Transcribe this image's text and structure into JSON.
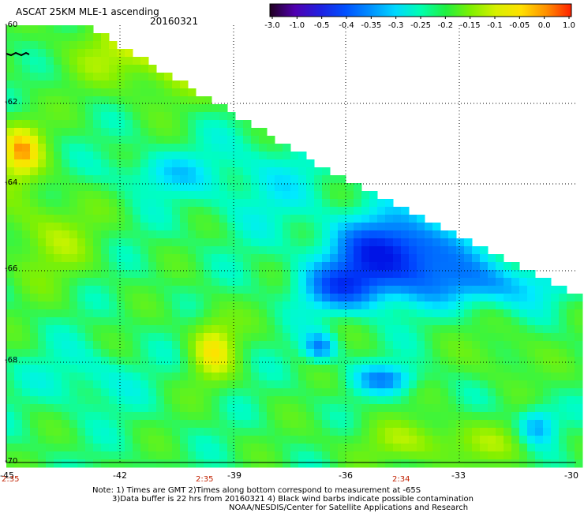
{
  "header": {
    "title": "ASCAT 25KM MLE-1 ascending",
    "date": "20160321"
  },
  "colorbar": {
    "labels": [
      "-3.0",
      "-1.0",
      "-0.5",
      "-0.4",
      "-0.35",
      "-0.3",
      "-0.25",
      "-0.2",
      "-0.15",
      "-0.1",
      "-0.05",
      "0.0",
      "1.0"
    ],
    "colors": [
      "#200020",
      "#5000b0",
      "#2020e0",
      "#0050ff",
      "#0090ff",
      "#00d8ff",
      "#00ffb0",
      "#20f040",
      "#80f000",
      "#d8f000",
      "#ffe000",
      "#ff9000",
      "#ff2000"
    ]
  },
  "axes": {
    "lat_labels": [
      "-60",
      "-62",
      "-64",
      "-66",
      "-68",
      "-70"
    ],
    "lon_labels": [
      "-45",
      "-42",
      "-39",
      "-36",
      "-33",
      "-30"
    ],
    "time_labels": [
      "2:35",
      "2:35",
      "2:34"
    ]
  },
  "notes": {
    "line1": "Note: 1) Times are GMT 2)Times along bottom correspond to measurement at -65S",
    "line2": "3)Data buffer is 22 hrs from 20160321 4) Black wind barbs indicate possible contamination",
    "line3": "NOAA/NESDIS/Center for Satellite Applications and Research"
  }
}
